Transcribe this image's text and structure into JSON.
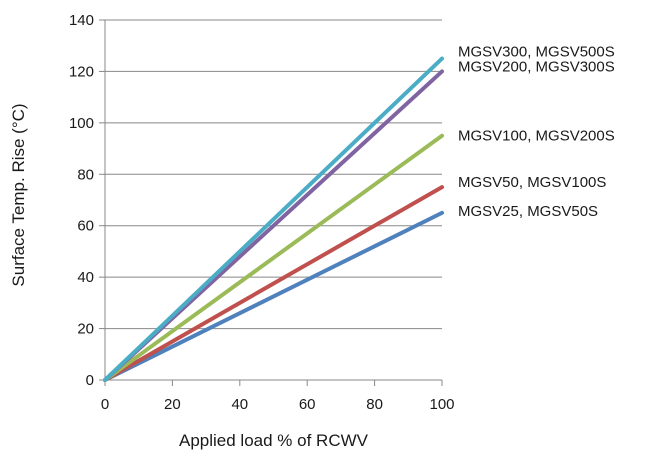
{
  "chart_data": {
    "type": "line",
    "title": "",
    "xlabel": "Applied load % of RCWV",
    "ylabel": "Surface Temp. Rise (°C)",
    "xlim": [
      0,
      100
    ],
    "ylim": [
      0,
      140
    ],
    "xticks": [
      0,
      20,
      40,
      60,
      80,
      100
    ],
    "yticks": [
      0,
      20,
      40,
      60,
      80,
      100,
      120,
      140
    ],
    "grid": "horizontal",
    "legend": "labels at line ends, right",
    "series": [
      {
        "name": "MGSV25, MGSV50S",
        "color": "#4f81bd",
        "x": [
          0,
          100
        ],
        "y": [
          0,
          65
        ]
      },
      {
        "name": "MGSV50, MGSV100S",
        "color": "#c0504d",
        "x": [
          0,
          100
        ],
        "y": [
          0,
          75
        ]
      },
      {
        "name": "MGSV100, MGSV200S",
        "color": "#9bbb59",
        "x": [
          0,
          100
        ],
        "y": [
          0,
          95
        ]
      },
      {
        "name": "MGSV200, MGSV300S",
        "color": "#8064a2",
        "x": [
          0,
          100
        ],
        "y": [
          0,
          120
        ]
      },
      {
        "name": "MGSV300, MGSV500S",
        "color": "#4bacc6",
        "x": [
          0,
          100
        ],
        "y": [
          0,
          125
        ]
      }
    ]
  }
}
